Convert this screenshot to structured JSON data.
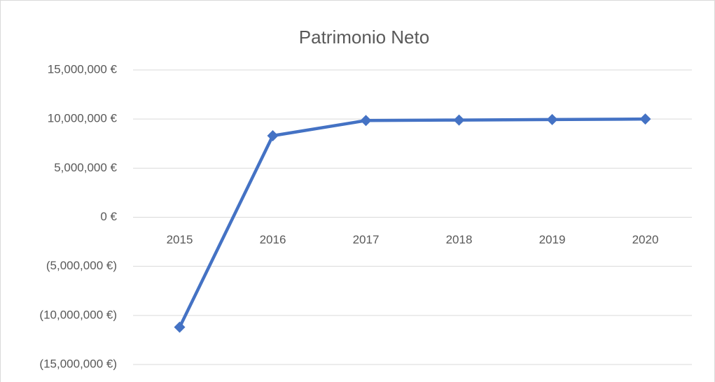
{
  "chart_data": {
    "type": "line",
    "title": "Patrimonio Neto",
    "categories": [
      "2015",
      "2016",
      "2017",
      "2018",
      "2019",
      "2020"
    ],
    "series": [
      {
        "name": "Patrimonio Neto",
        "color": "#4472c4",
        "values": [
          -11200000,
          8300000,
          9850000,
          9900000,
          9950000,
          10000000
        ]
      }
    ],
    "ylim": [
      -15000000,
      15000000
    ],
    "yticks": [
      {
        "value": -15000000,
        "label": "(15,000,000 €)"
      },
      {
        "value": -10000000,
        "label": "(10,000,000 €)"
      },
      {
        "value": -5000000,
        "label": "(5,000,000 €)"
      },
      {
        "value": 0,
        "label": "0 €"
      },
      {
        "value": 5000000,
        "label": "5,000,000 €"
      },
      {
        "value": 10000000,
        "label": "10,000,000 €"
      },
      {
        "value": 15000000,
        "label": "15,000,000 €"
      }
    ],
    "grid": true
  }
}
